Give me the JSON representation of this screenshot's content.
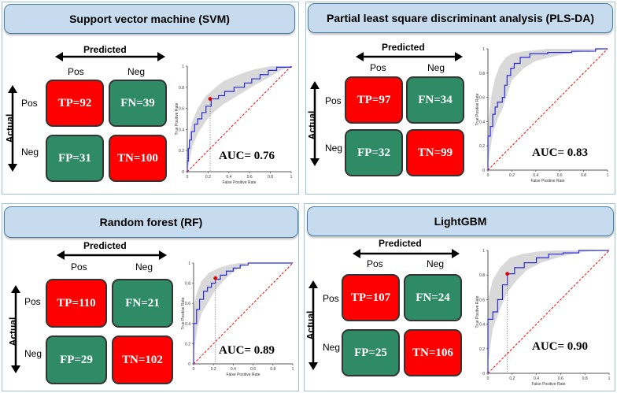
{
  "labels": {
    "predicted": "Predicted",
    "actual": "Actual",
    "pos": "Pos",
    "neg": "Neg",
    "roc_xlabel": "False Positive Rate",
    "roc_ylabel": "True Positive Rate"
  },
  "colors": {
    "positive_cell": "#ff0000",
    "negative_cell": "#2e8b66",
    "roc_line": "#2b2bd6",
    "chance_line": "#ff0000",
    "band": "#d9d9d9"
  },
  "chart_data": [
    {
      "type": "line",
      "title": "Support vector machine (SVM)",
      "confusion_matrix": {
        "TP": "TP=92",
        "FN": "FN=39",
        "FP": "FP=31",
        "TN": "TN=100"
      },
      "auc_label": "AUC= 0.76",
      "xlabel": "False Positive Rate",
      "ylabel": "True Positive Rate",
      "xlim": [
        0,
        1
      ],
      "ylim": [
        0,
        1
      ],
      "x_ticks": [
        "0",
        "0.2",
        "0.4",
        "0.6",
        "0.8",
        "1"
      ],
      "y_ticks": [
        "0",
        "0.2",
        "0.4",
        "0.6",
        "0.8",
        "1"
      ],
      "roc": [
        [
          0,
          0
        ],
        [
          0,
          0.1
        ],
        [
          0.01,
          0.22
        ],
        [
          0.02,
          0.3
        ],
        [
          0.04,
          0.38
        ],
        [
          0.07,
          0.45
        ],
        [
          0.1,
          0.5
        ],
        [
          0.14,
          0.56
        ],
        [
          0.18,
          0.62
        ],
        [
          0.23,
          0.69
        ],
        [
          0.3,
          0.72
        ],
        [
          0.36,
          0.76
        ],
        [
          0.45,
          0.8
        ],
        [
          0.55,
          0.84
        ],
        [
          0.62,
          0.88
        ],
        [
          0.7,
          0.92
        ],
        [
          0.78,
          0.96
        ],
        [
          0.86,
          0.99
        ],
        [
          1,
          1
        ]
      ],
      "band_upper": [
        [
          0,
          0.05
        ],
        [
          0.02,
          0.36
        ],
        [
          0.05,
          0.48
        ],
        [
          0.1,
          0.6
        ],
        [
          0.18,
          0.72
        ],
        [
          0.25,
          0.78
        ],
        [
          0.35,
          0.86
        ],
        [
          0.45,
          0.9
        ],
        [
          0.55,
          0.94
        ],
        [
          0.65,
          0.97
        ],
        [
          0.8,
          1
        ],
        [
          1,
          1
        ]
      ],
      "band_lower": [
        [
          0,
          0
        ],
        [
          0.05,
          0.24
        ],
        [
          0.1,
          0.36
        ],
        [
          0.18,
          0.48
        ],
        [
          0.25,
          0.56
        ],
        [
          0.35,
          0.64
        ],
        [
          0.45,
          0.7
        ],
        [
          0.55,
          0.76
        ],
        [
          0.65,
          0.82
        ],
        [
          0.8,
          0.9
        ],
        [
          0.9,
          0.96
        ],
        [
          1,
          1
        ]
      ],
      "operating_point": [
        0.22,
        0.69
      ]
    },
    {
      "type": "line",
      "title": "Partial least square discriminant analysis (PLS-DA)",
      "confusion_matrix": {
        "TP": "TP=97",
        "FN": "FN=34",
        "FP": "FP=32",
        "TN": "TN=99"
      },
      "auc_label": "AUC= 0.83",
      "xlabel": "False Positive Rate",
      "ylabel": "True Positive Rate",
      "xlim": [
        0,
        1
      ],
      "ylim": [
        0,
        1
      ],
      "x_ticks": [
        "0",
        "0.2",
        "0.4",
        "0.6",
        "0.8",
        "1"
      ],
      "y_ticks": [
        "0",
        "0.2",
        "0.4",
        "0.6",
        "0.8",
        "1"
      ],
      "roc": [
        [
          0,
          0
        ],
        [
          0,
          0.28
        ],
        [
          0.02,
          0.36
        ],
        [
          0.04,
          0.46
        ],
        [
          0.06,
          0.52
        ],
        [
          0.08,
          0.56
        ],
        [
          0.12,
          0.6
        ],
        [
          0.14,
          0.7
        ],
        [
          0.16,
          0.78
        ],
        [
          0.19,
          0.84
        ],
        [
          0.22,
          0.88
        ],
        [
          0.27,
          0.93
        ],
        [
          0.35,
          0.96
        ],
        [
          0.5,
          0.97
        ],
        [
          0.7,
          0.98
        ],
        [
          0.9,
          1
        ],
        [
          1,
          1
        ]
      ],
      "band_upper": [
        [
          0,
          0.38
        ],
        [
          0.03,
          0.62
        ],
        [
          0.06,
          0.76
        ],
        [
          0.1,
          0.86
        ],
        [
          0.15,
          0.93
        ],
        [
          0.2,
          0.96
        ],
        [
          0.3,
          0.98
        ],
        [
          0.5,
          1
        ],
        [
          1,
          1
        ]
      ],
      "band_lower": [
        [
          0,
          0.05
        ],
        [
          0.04,
          0.3
        ],
        [
          0.08,
          0.42
        ],
        [
          0.12,
          0.5
        ],
        [
          0.16,
          0.62
        ],
        [
          0.2,
          0.74
        ],
        [
          0.3,
          0.84
        ],
        [
          0.4,
          0.9
        ],
        [
          0.6,
          0.95
        ],
        [
          0.8,
          0.98
        ],
        [
          1,
          1
        ]
      ],
      "operating_point": null
    },
    {
      "type": "line",
      "title": "Random forest (RF)",
      "confusion_matrix": {
        "TP": "TP=110",
        "FN": "FN=21",
        "FP": "FP=29",
        "TN": "TN=102"
      },
      "auc_label": "AUC= 0.89",
      "xlabel": "False Positive Rate",
      "ylabel": "True Positive Rate",
      "xlim": [
        0,
        1
      ],
      "ylim": [
        0,
        1
      ],
      "x_ticks": [
        "0",
        "0.2",
        "0.4",
        "0.6",
        "0.8",
        "1"
      ],
      "y_ticks": [
        "0",
        "0.2",
        "0.4",
        "0.6",
        "0.8",
        "1"
      ],
      "roc": [
        [
          0,
          0
        ],
        [
          0,
          0.4
        ],
        [
          0.03,
          0.54
        ],
        [
          0.06,
          0.64
        ],
        [
          0.1,
          0.72
        ],
        [
          0.14,
          0.76
        ],
        [
          0.18,
          0.8
        ],
        [
          0.22,
          0.84
        ],
        [
          0.27,
          0.88
        ],
        [
          0.33,
          0.92
        ],
        [
          0.4,
          0.95
        ],
        [
          0.47,
          0.98
        ],
        [
          0.55,
          1
        ],
        [
          1,
          1
        ]
      ],
      "band_upper": [
        [
          0,
          0.55
        ],
        [
          0.03,
          0.7
        ],
        [
          0.08,
          0.82
        ],
        [
          0.15,
          0.9
        ],
        [
          0.25,
          0.95
        ],
        [
          0.35,
          0.98
        ],
        [
          0.45,
          1
        ],
        [
          1,
          1
        ]
      ],
      "band_lower": [
        [
          0,
          0.1
        ],
        [
          0.04,
          0.36
        ],
        [
          0.08,
          0.5
        ],
        [
          0.14,
          0.6
        ],
        [
          0.2,
          0.7
        ],
        [
          0.28,
          0.8
        ],
        [
          0.36,
          0.88
        ],
        [
          0.44,
          0.94
        ],
        [
          0.55,
          1
        ],
        [
          1,
          1
        ]
      ],
      "operating_point": [
        0.22,
        0.85
      ]
    },
    {
      "type": "line",
      "title": "LightGBM",
      "confusion_matrix": {
        "TP": "TP=107",
        "FN": "FN=24",
        "FP": "FP=25",
        "TN": "TN=106"
      },
      "auc_label": "AUC= 0.90",
      "xlabel": "False Positive Rate",
      "ylabel": "True Positive Rate",
      "xlim": [
        0,
        1
      ],
      "ylim": [
        0,
        1
      ],
      "x_ticks": [
        "0",
        "0.2",
        "0.4",
        "0.6",
        "0.8",
        "1"
      ],
      "y_ticks": [
        "0",
        "0.2",
        "0.4",
        "0.6",
        "0.8",
        "1"
      ],
      "roc": [
        [
          0,
          0
        ],
        [
          0,
          0.44
        ],
        [
          0.04,
          0.5
        ],
        [
          0.08,
          0.6
        ],
        [
          0.12,
          0.72
        ],
        [
          0.16,
          0.81
        ],
        [
          0.22,
          0.86
        ],
        [
          0.3,
          0.9
        ],
        [
          0.4,
          0.94
        ],
        [
          0.5,
          0.97
        ],
        [
          0.62,
          0.98
        ],
        [
          0.75,
          1
        ],
        [
          1,
          1
        ]
      ],
      "band_upper": [
        [
          0,
          0.6
        ],
        [
          0.04,
          0.76
        ],
        [
          0.1,
          0.86
        ],
        [
          0.18,
          0.94
        ],
        [
          0.28,
          0.97
        ],
        [
          0.4,
          0.99
        ],
        [
          0.55,
          1
        ],
        [
          1,
          1
        ]
      ],
      "band_lower": [
        [
          0,
          0.08
        ],
        [
          0.04,
          0.36
        ],
        [
          0.1,
          0.52
        ],
        [
          0.16,
          0.66
        ],
        [
          0.24,
          0.76
        ],
        [
          0.32,
          0.84
        ],
        [
          0.44,
          0.9
        ],
        [
          0.6,
          0.95
        ],
        [
          0.8,
          0.99
        ],
        [
          1,
          1
        ]
      ],
      "operating_point": [
        0.16,
        0.81
      ]
    }
  ]
}
